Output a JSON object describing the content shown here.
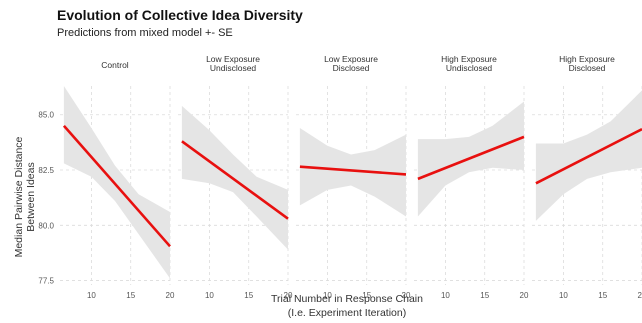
{
  "chart_data": {
    "type": "line",
    "title": "Evolution of Collective Idea Diversity",
    "subtitle": "Predictions from mixed model +- SE",
    "xlabel": [
      "Trial Number in Response Chain",
      "(I.e. Experiment Iteration)"
    ],
    "ylabel": [
      "Median Pairwise Distance",
      "Between Ideas"
    ],
    "xlim": [
      6,
      20
    ],
    "ylim": [
      77.3,
      86.3
    ],
    "x_ticks": [
      10,
      15,
      20
    ],
    "y_ticks": [
      77.5,
      80.0,
      82.5,
      85.0
    ],
    "y_tick_labels": [
      "77.5",
      "80.0",
      "82.5",
      "85.0"
    ],
    "grid": true,
    "line_color": "#e8100f",
    "ribbon_color": "#e5e5e5",
    "panels": [
      {
        "label": [
          "Control"
        ],
        "line": {
          "x": [
            6.5,
            20
          ],
          "y": [
            84.5,
            79.05
          ]
        },
        "ribbon": {
          "x": [
            6.5,
            10,
            13,
            16,
            20
          ],
          "upper": [
            86.3,
            84.4,
            82.7,
            81.4,
            80.6
          ],
          "lower": [
            82.8,
            82.2,
            81.1,
            79.6,
            77.6
          ]
        }
      },
      {
        "label": [
          "Low Exposure",
          "Undisclosed"
        ],
        "line": {
          "x": [
            6.5,
            20
          ],
          "y": [
            83.8,
            80.3
          ]
        },
        "ribbon": {
          "x": [
            6.5,
            10,
            13,
            16,
            20
          ],
          "upper": [
            85.4,
            84.3,
            83.2,
            82.2,
            81.6
          ],
          "lower": [
            82.1,
            81.9,
            81.5,
            80.4,
            78.9
          ]
        }
      },
      {
        "label": [
          "Low Exposure",
          "Disclosed"
        ],
        "line": {
          "x": [
            6.5,
            20
          ],
          "y": [
            82.65,
            82.3
          ]
        },
        "ribbon": {
          "x": [
            6.5,
            10,
            13,
            16,
            20
          ],
          "upper": [
            84.4,
            83.6,
            83.2,
            83.4,
            84.1
          ],
          "lower": [
            80.9,
            81.6,
            81.8,
            81.3,
            80.4
          ]
        }
      },
      {
        "label": [
          "High Exposure",
          "Undisclosed"
        ],
        "line": {
          "x": [
            6.5,
            20
          ],
          "y": [
            82.1,
            84.0
          ]
        },
        "ribbon": {
          "x": [
            6.5,
            10,
            13,
            16,
            20
          ],
          "upper": [
            83.9,
            83.9,
            84.0,
            84.5,
            85.6
          ],
          "lower": [
            80.4,
            81.8,
            82.4,
            82.6,
            82.5
          ]
        }
      },
      {
        "label": [
          "High Exposure",
          "Disclosed"
        ],
        "line": {
          "x": [
            6.5,
            20
          ],
          "y": [
            81.9,
            84.35
          ]
        },
        "ribbon": {
          "x": [
            6.5,
            10,
            13,
            16,
            20
          ],
          "upper": [
            83.7,
            83.7,
            84.1,
            84.7,
            86.1
          ],
          "lower": [
            80.2,
            81.4,
            82.1,
            82.4,
            82.6
          ]
        }
      }
    ]
  }
}
